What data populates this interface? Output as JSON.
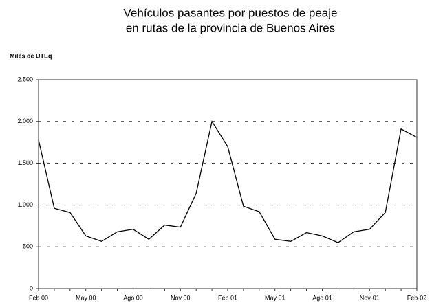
{
  "chart_data": {
    "type": "line",
    "title": [
      "Vehículos pasantes por puestos de peaje",
      "en rutas de la provincia de Buenos Aires"
    ],
    "y_label": "Miles de UTEq",
    "categories": [
      "Feb 00",
      null,
      null,
      "May 00",
      null,
      null,
      "Ago 00",
      null,
      null,
      "Nov 00",
      null,
      null,
      "Feb 01",
      null,
      null,
      "May 01",
      null,
      null,
      "Ago 01",
      null,
      null,
      "Nov-01",
      null,
      null,
      "Feb-02"
    ],
    "series": [
      {
        "name": "Vehículos",
        "color": "#000000",
        "values": [
          1780,
          960,
          910,
          630,
          565,
          680,
          710,
          590,
          760,
          735,
          1140,
          2000,
          1700,
          985,
          920,
          590,
          565,
          670,
          630,
          550,
          680,
          710,
          910,
          1910,
          1810
        ]
      }
    ],
    "ylim": [
      0,
      2500
    ],
    "yticks": [
      0,
      500,
      {
        "value": 1000,
        "label": "1.000"
      },
      {
        "value": 1500,
        "label": "1.500"
      },
      {
        "value": 2000,
        "label": "2.000"
      },
      {
        "value": 2500,
        "label": "2.500"
      }
    ],
    "grid": true
  }
}
